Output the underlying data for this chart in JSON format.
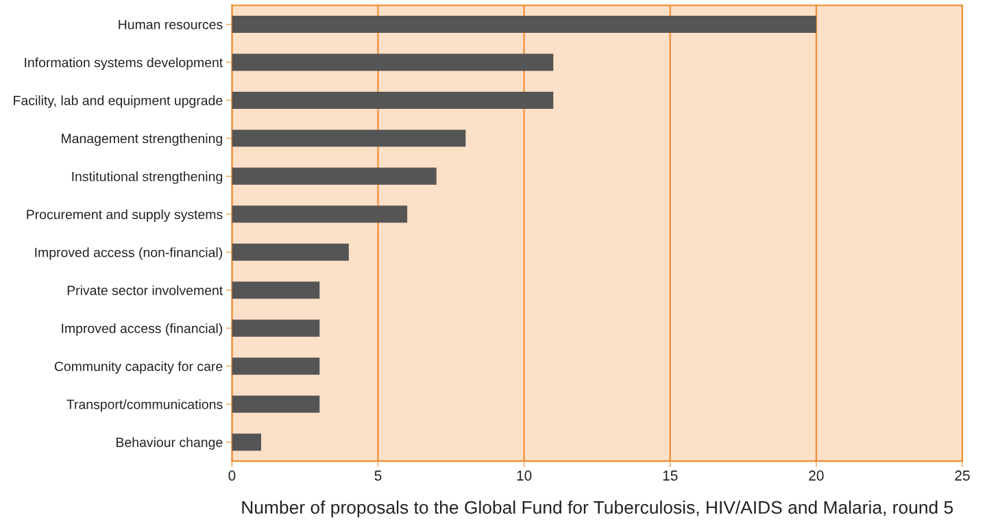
{
  "chart_data": {
    "type": "bar",
    "orientation": "horizontal",
    "categories": [
      "Human resources",
      "Information systems development",
      "Facility, lab and equipment upgrade",
      "Management strengthening",
      "Institutional strengthening",
      "Procurement and supply systems",
      "Improved access (non-financial)",
      "Private sector involvement",
      "Improved access (financial)",
      "Community capacity for care",
      "Transport/communications",
      "Behaviour change"
    ],
    "values": [
      20,
      11,
      11,
      8,
      7,
      6,
      4,
      3,
      3,
      3,
      3,
      1
    ],
    "color": "#555555",
    "xlim": [
      0,
      25
    ],
    "xticks": [
      0,
      5,
      10,
      15,
      20,
      25
    ],
    "grid": "x",
    "xlabel": "Number of proposals to the Global Fund for Tuberculosis, HIV/AIDS and Malaria, round 5"
  }
}
